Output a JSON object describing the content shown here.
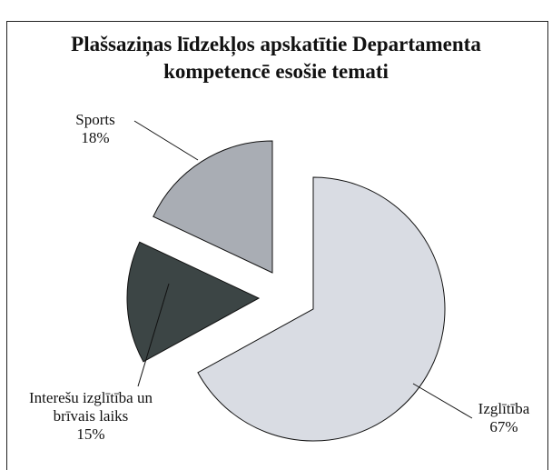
{
  "chart_data": {
    "type": "pie",
    "title": "Plašsaziņas līdzekļos apskatītie Departamenta kompetencē esošie temati",
    "categories": [
      "Izglītība",
      "Interešu izglītība un brīvais laiks",
      "Sports"
    ],
    "values": [
      67,
      15,
      18
    ],
    "value_labels": [
      "67%",
      "15%",
      "18%"
    ],
    "colors": [
      "#d9dce3",
      "#3c4545",
      "#a9adb4"
    ]
  }
}
